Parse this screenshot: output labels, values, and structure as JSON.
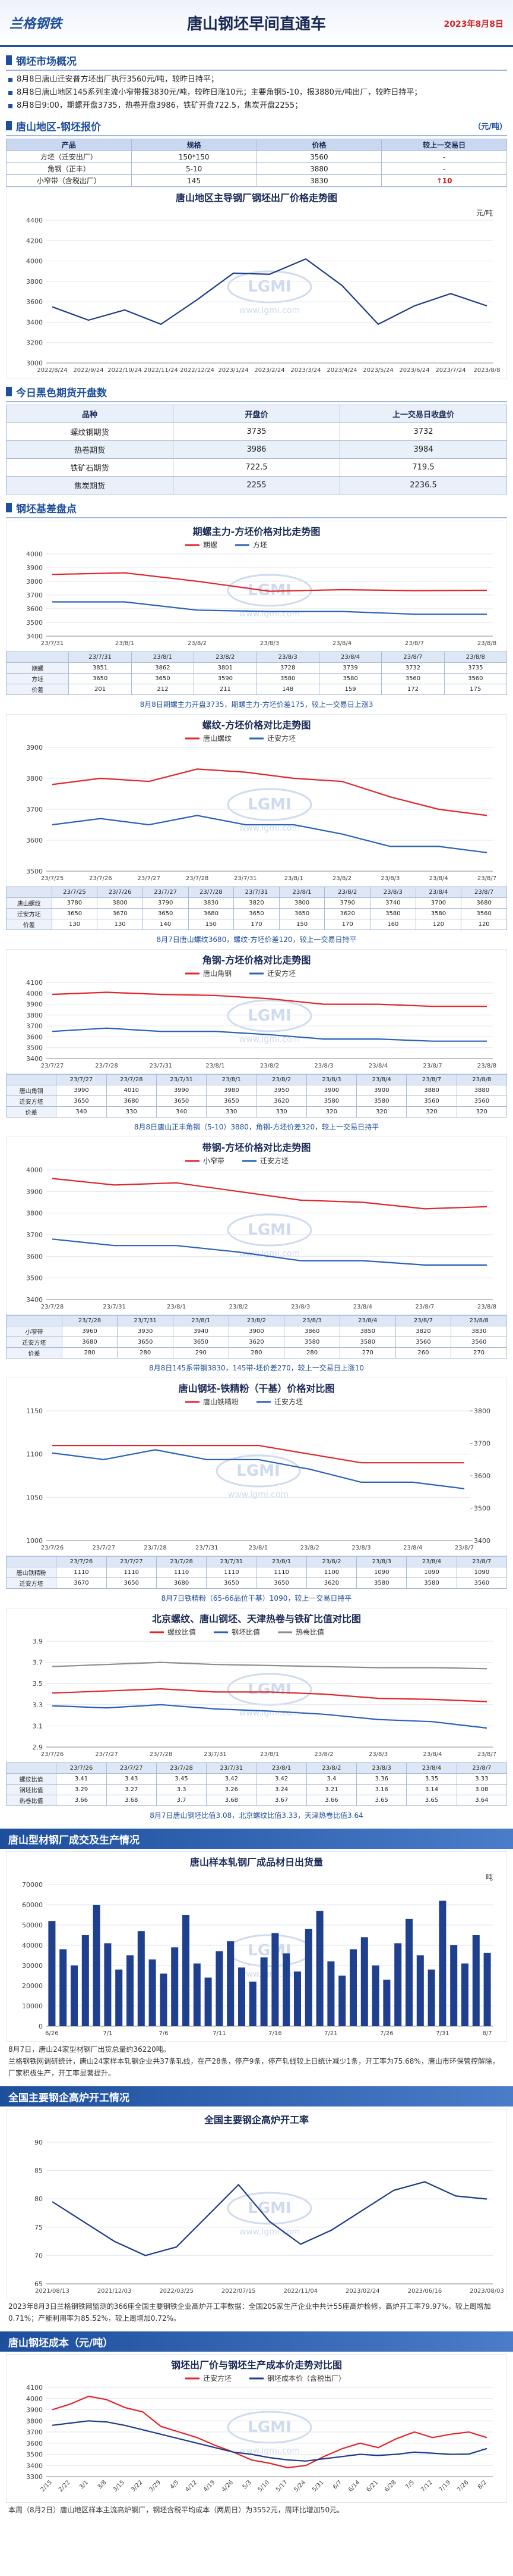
{
  "header": {
    "logo": "兰格钢铁",
    "title": "唐山钢坯早间直通车",
    "date": "2023年8月8日"
  },
  "watermark": {
    "logo": "LGMI",
    "url": "www.lgmi.com"
  },
  "market": {
    "title": "钢坯市场概况",
    "items": [
      "8月8日唐山迁安普方坯出厂执行3560元/吨，较昨日持平；",
      "8月8日唐山地区145系列主流小窄带报3830元/吨，较昨日涨10元；主要角钢5-10，报3880元/吨出厂，较昨日持平；",
      "8月8日9:00，期螺开盘3735，热卷开盘3986，铁矿开盘722.5，焦炭开盘2255；"
    ]
  },
  "quote": {
    "title": "唐山地区-钢坯报价",
    "unit": "（元/吨）",
    "table": {
      "columns": [
        "产品",
        "规格",
        "价格",
        "较上一交易日"
      ],
      "rows": [
        [
          "方坯（迁安出厂）",
          "150*150",
          3560,
          "-"
        ],
        [
          "角钢（正丰）",
          "5-10",
          3880,
          "-"
        ],
        [
          "小窄带（含税出厂）",
          "145",
          3830,
          "↑10"
        ]
      ]
    }
  },
  "futures": {
    "title": "今日黑色期货开盘数",
    "table": {
      "columns": [
        "品种",
        "开盘价",
        "上一交易日收盘价"
      ],
      "rows": [
        [
          "螺纹钢期货",
          3735,
          3732
        ],
        [
          "热卷期货",
          3986,
          3984
        ],
        [
          "铁矿石期货",
          722.5,
          719.5
        ],
        [
          "焦炭期货",
          2255,
          2236.5
        ]
      ]
    }
  },
  "basis": {
    "title": "钢坯基差盘点"
  },
  "profile": {
    "title": "唐山型材钢厂成交及生产情况",
    "caption": "8月7日，唐山24家型材钢厂出货总量约36220吨。",
    "text": "兰格钢铁网调研统计，唐山24家样本轧钢企业共37条轧线，在产28条，停产9条，停产轧线较上日统计减少1条，开工率为75.68%，唐山市环保管控解除，厂家积极生产，开工率显著提升。"
  },
  "furnace": {
    "title": "全国主要钢企高炉开工情况",
    "text": "2023年8月3日兰格钢铁网监测的366座全国主要钢铁企业高炉开工率数据：全国205家生产企业中共计55座高炉检修，高炉开工率79.97%，较上周增加0.71%；产能利用率为85.52%，较上周增加0.72%。"
  },
  "cost": {
    "title": "唐山钢坯成本（元/吨）",
    "text": "本周（8月2日）唐山地区样本主流高炉钢厂，钢坯含税平均成本（两周日）为3552元，周环比增加50元。"
  },
  "chart_data": [
    {
      "type": "line",
      "title": "唐山地区主导钢厂钢坯出厂价格走势图",
      "unit": "元/吨",
      "x": [
        "2022/8/24",
        "2022/9/24",
        "2022/10/24",
        "2022/11/24",
        "2022/12/24",
        "2023/1/24",
        "2023/2/24",
        "2023/3/24",
        "2023/4/24",
        "2023/5/24",
        "2023/6/24",
        "2023/7/24",
        "2023/8/8"
      ],
      "series": [
        {
          "color": "#1f3c88",
          "values": [
            3550,
            3420,
            3520,
            3380,
            3620,
            3880,
            3870,
            4020,
            3760,
            3380,
            3560,
            3680,
            3560
          ]
        }
      ],
      "ylim": [
        3000,
        4400
      ],
      "yticks": [
        3000,
        3200,
        3400,
        3600,
        3800,
        4000,
        4200,
        4400
      ],
      "grid": true
    },
    {
      "type": "line",
      "title": "期螺主力-方坯价格对比走势图",
      "x": [
        "23/7/31",
        "23/8/1",
        "23/8/2",
        "23/8/3",
        "23/8/4",
        "23/8/7",
        "23/8/8"
      ],
      "series": [
        {
          "name": "期螺",
          "color": "#e0262b",
          "values": [
            3851,
            3862,
            3801,
            3728,
            3739,
            3732,
            3735
          ]
        },
        {
          "name": "方坯",
          "color": "#2a62b8",
          "values": [
            3650,
            3650,
            3590,
            3580,
            3580,
            3560,
            3560
          ]
        }
      ],
      "table_rows": [
        {
          "name": "价差",
          "values": [
            201,
            212,
            211,
            148,
            159,
            172,
            175
          ]
        }
      ],
      "ylim": [
        3400,
        4000
      ],
      "yticks": [
        3400,
        3500,
        3600,
        3700,
        3800,
        3900,
        4000
      ],
      "grid": true,
      "caption": "8月8日期螺主力开盘3735，期螺主力-方坯价差175，较上一交易日上涨3"
    },
    {
      "type": "line",
      "title": "螺纹-方坯价格对比走势图",
      "x": [
        "23/7/25",
        "23/7/26",
        "23/7/27",
        "23/7/28",
        "23/7/31",
        "23/8/1",
        "23/8/2",
        "23/8/3",
        "23/8/4",
        "23/8/7"
      ],
      "series": [
        {
          "name": "唐山螺纹",
          "color": "#e0262b",
          "values": [
            3780,
            3800,
            3790,
            3830,
            3820,
            3800,
            3790,
            3740,
            3700,
            3680
          ]
        },
        {
          "name": "迁安方坯",
          "color": "#2a62b8",
          "values": [
            3650,
            3670,
            3650,
            3680,
            3650,
            3650,
            3620,
            3580,
            3580,
            3560
          ]
        }
      ],
      "table_rows": [
        {
          "name": "价差",
          "values": [
            130,
            130,
            140,
            150,
            170,
            150,
            170,
            160,
            120,
            120
          ]
        }
      ],
      "ylim": [
        3500,
        3900
      ],
      "yticks": [
        3500,
        3600,
        3700,
        3800,
        3900
      ],
      "grid": true,
      "caption": "8月7日唐山螺纹3680，螺纹-方坯价差120，较上一交易日持平"
    },
    {
      "type": "line",
      "title": "角钢-方坯价格对比走势图",
      "x": [
        "23/7/27",
        "23/7/28",
        "23/7/31",
        "23/8/1",
        "23/8/2",
        "23/8/3",
        "23/8/4",
        "23/8/7",
        "23/8/8"
      ],
      "series": [
        {
          "name": "唐山角钢",
          "color": "#e0262b",
          "values": [
            3990,
            4010,
            3990,
            3980,
            3950,
            3900,
            3900,
            3880,
            3880
          ]
        },
        {
          "name": "迁安方坯",
          "color": "#2a62b8",
          "values": [
            3650,
            3680,
            3650,
            3650,
            3620,
            3580,
            3580,
            3560,
            3560
          ]
        }
      ],
      "table_rows": [
        {
          "name": "价差",
          "values": [
            340,
            330,
            340,
            330,
            330,
            320,
            320,
            320,
            320
          ]
        }
      ],
      "ylim": [
        3400,
        4100
      ],
      "yticks": [
        3400,
        3500,
        3600,
        3700,
        3800,
        3900,
        4000,
        4100
      ],
      "grid": true,
      "caption": "8月8日唐山正丰角钢（5-10）3880，角钢-方坯价差320，较上一交易日持平"
    },
    {
      "type": "line",
      "title": "带钢-方坯价格对比走势图",
      "x": [
        "23/7/28",
        "23/7/31",
        "23/8/1",
        "23/8/2",
        "23/8/3",
        "23/8/4",
        "23/8/7",
        "23/8/8"
      ],
      "series": [
        {
          "name": "小窄带",
          "color": "#e0262b",
          "values": [
            3960,
            3930,
            3940,
            3900,
            3860,
            3850,
            3820,
            3830
          ]
        },
        {
          "name": "迁安方坯",
          "color": "#2a62b8",
          "values": [
            3680,
            3650,
            3650,
            3620,
            3580,
            3580,
            3560,
            3560
          ]
        }
      ],
      "table_rows": [
        {
          "name": "价差",
          "values": [
            280,
            280,
            290,
            280,
            280,
            270,
            260,
            270
          ]
        }
      ],
      "ylim": [
        3400,
        4000
      ],
      "yticks": [
        3400,
        3500,
        3600,
        3700,
        3800,
        3900,
        4000
      ],
      "grid": true,
      "caption": "8月8日145系带钢3830，145带-坯价差270，较上一交易日上涨10"
    },
    {
      "type": "line",
      "title": "唐山钢坯-铁精粉（干基）价格对比图",
      "x": [
        "23/7/26",
        "23/7/27",
        "23/7/28",
        "23/7/31",
        "23/8/1",
        "23/8/2",
        "23/8/3",
        "23/8/4",
        "23/8/7"
      ],
      "series": [
        {
          "name": "唐山铁精粉",
          "color": "#e0262b",
          "values": [
            1110,
            1110,
            1110,
            1110,
            1110,
            1100,
            1090,
            1090,
            1090
          ]
        },
        {
          "name": "迁安方坯",
          "color": "#2a62b8",
          "axis": "y2",
          "values": [
            3670,
            3650,
            3680,
            3650,
            3650,
            3620,
            3580,
            3580,
            3560
          ]
        }
      ],
      "ylim": [
        1000,
        1150
      ],
      "yticks": [
        1000,
        1050,
        1100,
        1150
      ],
      "y2lim": [
        3400,
        3800
      ],
      "y2ticks": [
        3400,
        3500,
        3600,
        3700,
        3800
      ],
      "grid": true,
      "caption": "8月7日铁精粉（65-66品位干基）1090，较上一交易日持平"
    },
    {
      "type": "line",
      "title": "北京螺纹、唐山钢坯、天津热卷与铁矿比值对比图",
      "x": [
        "23/7/26",
        "23/7/27",
        "23/7/28",
        "23/7/31",
        "23/8/1",
        "23/8/2",
        "23/8/3",
        "23/8/4",
        "23/8/7"
      ],
      "series": [
        {
          "name": "螺纹比值",
          "color": "#e0262b",
          "values": [
            3.41,
            3.43,
            3.45,
            3.42,
            3.42,
            3.4,
            3.36,
            3.35,
            3.33
          ]
        },
        {
          "name": "钢坯比值",
          "color": "#2a62b8",
          "values": [
            3.29,
            3.27,
            3.3,
            3.26,
            3.24,
            3.21,
            3.16,
            3.14,
            3.08
          ]
        },
        {
          "name": "热卷比值",
          "color": "#8c8c8c",
          "values": [
            3.66,
            3.68,
            3.7,
            3.68,
            3.67,
            3.66,
            3.65,
            3.65,
            3.64
          ]
        }
      ],
      "ylim": [
        2.9,
        3.9
      ],
      "yticks": [
        2.9,
        3.1,
        3.3,
        3.5,
        3.7,
        3.9
      ],
      "grid": true,
      "caption": "8月7日唐山钢坯比值3.08，北京螺纹比值3.33，天津热卷比值3.64"
    },
    {
      "type": "bar",
      "title": "唐山样本轧钢厂成品材日出货量",
      "unit": "吨",
      "color": "#1f3f8f",
      "x": [
        "6/26",
        null,
        null,
        null,
        null,
        "7/1",
        null,
        null,
        null,
        null,
        "7/6",
        null,
        null,
        null,
        null,
        "7/11",
        null,
        null,
        null,
        null,
        "7/16",
        null,
        null,
        null,
        null,
        "7/21",
        null,
        null,
        null,
        null,
        "7/26",
        null,
        null,
        null,
        null,
        "7/31",
        null,
        null,
        null,
        "8/7"
      ],
      "values": [
        52000,
        38000,
        30000,
        45000,
        60000,
        41000,
        28000,
        35000,
        47000,
        33000,
        26000,
        39000,
        55000,
        31000,
        24000,
        37000,
        42000,
        29000,
        22000,
        34000,
        46000,
        36000,
        27000,
        48000,
        57000,
        32000,
        25000,
        38000,
        44000,
        30000,
        23000,
        41000,
        53000,
        35000,
        28000,
        62000,
        40000,
        31000,
        45000,
        36220
      ],
      "ylim": [
        0,
        70000
      ],
      "yticks": [
        0,
        10000,
        20000,
        30000,
        40000,
        50000,
        60000,
        70000
      ],
      "grid": true
    },
    {
      "type": "line",
      "title": "全国主要钢企高炉开工率",
      "x": [
        "2021/08/13",
        null,
        "2021/12/03",
        null,
        "2022/03/25",
        null,
        "2022/07/15",
        null,
        "2022/11/04",
        null,
        "2023/02/24",
        null,
        "2023/06/16",
        null,
        "2023/08/03"
      ],
      "series": [
        {
          "color": "#1f3c88",
          "values": [
            79.5,
            76,
            72.5,
            70,
            71.5,
            77,
            82.5,
            76,
            72,
            74.5,
            78,
            81.5,
            83,
            80.5,
            79.97
          ]
        }
      ],
      "ylim": [
        65,
        90
      ],
      "yticks": [
        65,
        70,
        75,
        80,
        85,
        90
      ],
      "grid": true
    },
    {
      "type": "line",
      "title": "钢坯出厂价与钢坯生产成本价走势对比图",
      "x": [
        "2/15",
        "2/22",
        "3/1",
        "3/8",
        "3/15",
        "3/22",
        "3/29",
        "4/5",
        "4/12",
        "4/19",
        "4/26",
        "5/3",
        "5/10",
        "5/17",
        "5/24",
        "5/31",
        "6/7",
        "6/14",
        "6/21",
        "6/28",
        "7/5",
        "7/12",
        "7/19",
        "7/26",
        "8/2"
      ],
      "series": [
        {
          "name": "迁安方坯",
          "color": "#e0262b",
          "values": [
            3900,
            3950,
            4020,
            3990,
            3920,
            3880,
            3750,
            3700,
            3650,
            3580,
            3520,
            3450,
            3420,
            3380,
            3400,
            3480,
            3550,
            3600,
            3560,
            3640,
            3700,
            3650,
            3680,
            3700,
            3650
          ]
        },
        {
          "name": "钢坯成本价（含税出厂）",
          "color": "#1f3c88",
          "values": [
            3760,
            3780,
            3800,
            3790,
            3760,
            3720,
            3680,
            3640,
            3600,
            3560,
            3520,
            3500,
            3470,
            3450,
            3440,
            3460,
            3480,
            3500,
            3490,
            3500,
            3520,
            3510,
            3500,
            3502,
            3552
          ]
        }
      ],
      "ylim": [
        3300,
        4100
      ],
      "yticks": [
        3300,
        3400,
        3500,
        3600,
        3700,
        3800,
        3900,
        4000,
        4100
      ],
      "grid": true
    }
  ]
}
